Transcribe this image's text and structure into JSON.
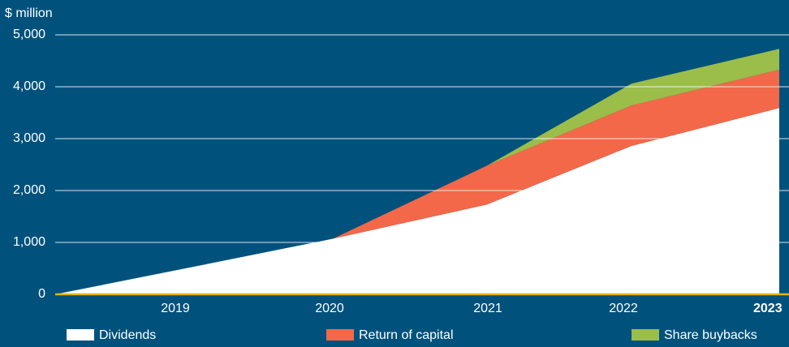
{
  "chart_data": {
    "type": "stacked_area",
    "y_axis_label": "$ million",
    "categories": [
      null,
      "2019",
      "2020",
      "2021",
      "2022",
      "2023"
    ],
    "series": [
      {
        "name": "Dividends",
        "color": "#ffffff",
        "values": [
          0,
          460,
          1070,
          1730,
          2860,
          3590
        ]
      },
      {
        "name": "Return of capital",
        "color": "#f26849",
        "values": [
          0,
          0,
          0,
          750,
          780,
          740
        ]
      },
      {
        "name": "Share buybacks",
        "color": "#9bbd4a",
        "values": [
          0,
          0,
          0,
          0,
          420,
          400
        ]
      }
    ],
    "ylim": [
      0,
      5000
    ],
    "yticks": [
      0,
      {
        "value": 1000,
        "label": "1,000"
      },
      {
        "value": 2000,
        "label": "2,000"
      },
      {
        "value": 3000,
        "label": "3,000"
      },
      {
        "value": 4000,
        "label": "4,000"
      },
      {
        "value": 5000,
        "label": "5,000"
      }
    ],
    "grid": true,
    "legend": "bottom"
  }
}
